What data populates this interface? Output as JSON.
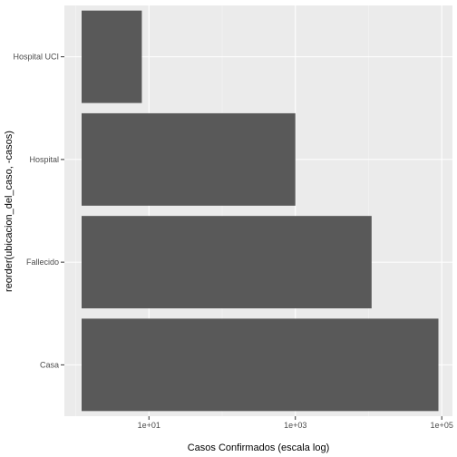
{
  "chart_data": {
    "type": "bar",
    "orientation": "horizontal",
    "categories": [
      "Casa",
      "Fallecido",
      "Hospital",
      "Hospital UCI"
    ],
    "values": [
      90000,
      11000,
      1000,
      8
    ],
    "xlabel": "Casos Confirmados (escala log)",
    "ylabel": "reorder(ubicacion_del_caso, -casos)",
    "x_scale": "log10",
    "xlim": [
      0.7,
      140000
    ],
    "x_ticks": [
      10,
      1000,
      100000
    ],
    "x_tick_labels": [
      "1e+01",
      "1e+03",
      "1e+05"
    ],
    "grid": true,
    "colors": {
      "bar": "#595959",
      "panel": "#ebebeb",
      "grid_major": "#ffffff",
      "grid_minor": "#f5f5f5",
      "tick": "#333333"
    }
  }
}
